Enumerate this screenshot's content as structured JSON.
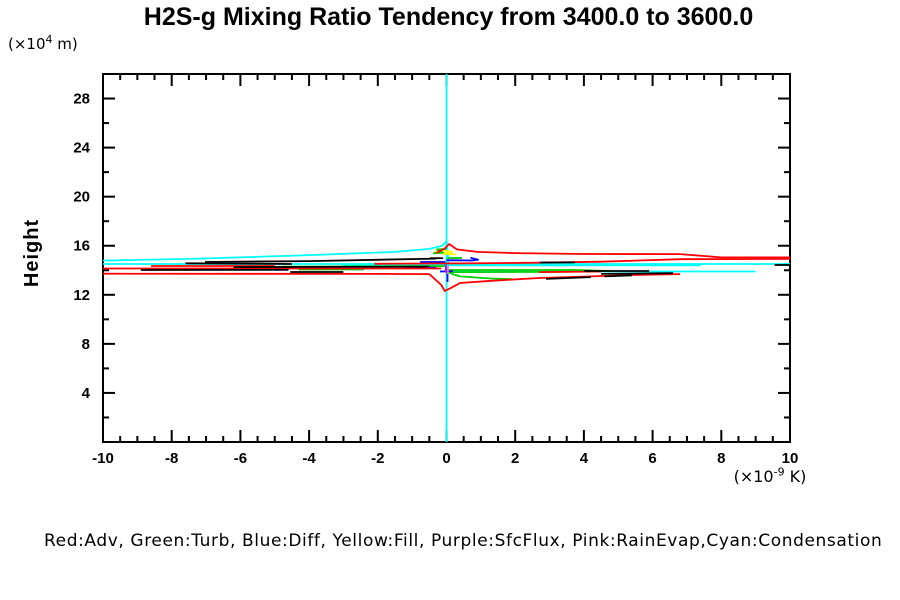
{
  "legend": {
    "text": "Red:Adv, Green:Turb, Blue:Diff, Yellow:Fill, Purple:SfcFlux, Pink:RainEvap,Cyan:Condensation"
  },
  "chart_data": {
    "type": "line",
    "title": "H2S-g Mixing Ratio Tendency from 3400.0 to 3600.0",
    "xlabel": "(x10^-9 K)",
    "ylabel": "Height (x10^4 m)",
    "xlim": [
      -10,
      10
    ],
    "ylim": [
      0,
      30
    ],
    "grid": "off",
    "legend_position": "bottom",
    "x_axis": {
      "min": -10,
      "max": 10,
      "minor_step": 0.5,
      "unit_parts": {
        "prefix": "(×10",
        "sup": "-9",
        "suffix": " K)"
      },
      "major_ticks": [
        {
          "v": -10,
          "label": "-10"
        },
        {
          "v": -8,
          "label": "-8"
        },
        {
          "v": -6,
          "label": "-6"
        },
        {
          "v": -4,
          "label": "-4"
        },
        {
          "v": -2,
          "label": "-2"
        },
        {
          "v": 0,
          "label": "0"
        },
        {
          "v": 2,
          "label": "2"
        },
        {
          "v": 4,
          "label": "4"
        },
        {
          "v": 6,
          "label": "6"
        },
        {
          "v": 8,
          "label": "8"
        },
        {
          "v": 10,
          "label": "10"
        }
      ]
    },
    "y_axis": {
      "min": 0,
      "max": 30,
      "minor_step": 2,
      "label": "Height",
      "unit_parts": {
        "prefix": "(×10",
        "sup": "4",
        "suffix": " m)"
      },
      "major_ticks": [
        {
          "h": 4,
          "label": "4"
        },
        {
          "h": 8,
          "label": "8"
        },
        {
          "h": 12,
          "label": "12"
        },
        {
          "h": 16,
          "label": "16"
        },
        {
          "h": 20,
          "label": "20"
        },
        {
          "h": 24,
          "label": "24"
        },
        {
          "h": 28,
          "label": "28"
        }
      ]
    },
    "series": [
      {
        "name": "Condensation",
        "color": "#00ffff",
        "lines": [
          [
            [
              0,
              30
            ],
            [
              0,
              0
            ]
          ],
          [
            [
              -10,
              14.79
            ],
            [
              -7.2,
              14.95
            ],
            [
              -4.3,
              15.2
            ],
            [
              -1.5,
              15.5
            ],
            [
              -0.5,
              15.74
            ],
            [
              -0.12,
              16.0
            ],
            [
              0,
              16.38
            ],
            [
              0.06,
              14.62
            ]
          ],
          [
            [
              -10,
              14.51
            ],
            [
              10,
              14.51
            ]
          ],
          [
            [
              -3,
              14.4
            ],
            [
              7.4,
              14.4
            ]
          ],
          [
            [
              0,
              13.9
            ],
            [
              9,
              13.9
            ]
          ]
        ]
      },
      {
        "name": "Fill",
        "color": "#ffff00",
        "lines": [
          [
            [
              -0.35,
              15.48
            ],
            [
              -0.05,
              15.62
            ],
            [
              0.16,
              15.5
            ],
            [
              -0.15,
              15.36
            ],
            [
              0.27,
              15.3
            ]
          ]
        ]
      },
      {
        "name": "Turb",
        "color": "#00d000",
        "lines": [
          [
            [
              -4.8,
              14.3
            ],
            [
              -0.9,
              14.33
            ],
            [
              -0.05,
              14.33
            ]
          ],
          [
            [
              -4.3,
              14.06
            ],
            [
              -2.4,
              14.06
            ]
          ],
          [
            [
              -0.4,
              15.38
            ],
            [
              -0.1,
              15.43
            ],
            [
              -0.28,
              15.7
            ],
            [
              0,
              15.73
            ]
          ],
          [
            [
              0.03,
              15.0
            ],
            [
              0.45,
              15.0
            ]
          ],
          [
            [
              0,
              14.02
            ],
            [
              3.8,
              14.02
            ],
            [
              4.8,
              13.94
            ]
          ],
          [
            [
              0,
              13.85
            ],
            [
              3.3,
              13.87
            ]
          ],
          [
            [
              0.02,
              13.9
            ],
            [
              0.2,
              13.66
            ],
            [
              0.4,
              13.5
            ],
            [
              0.8,
              13.42
            ],
            [
              1.3,
              13.33
            ],
            [
              1.9,
              13.28
            ]
          ]
        ]
      },
      {
        "name": "Diff",
        "color": "#0000ff",
        "lines": [
          [
            [
              -1.2,
              14.2
            ],
            [
              -0.3,
              14.2
            ]
          ],
          [
            [
              -0.77,
              14.67
            ],
            [
              -0.03,
              14.67
            ]
          ],
          [
            [
              0,
              14.82
            ],
            [
              0.75,
              14.8
            ],
            [
              0.92,
              14.86
            ],
            [
              0.7,
              15.02
            ]
          ],
          [
            [
              0.03,
              14.18
            ],
            [
              0.03,
              13.04
            ]
          ],
          [
            [
              -0.19,
              13.9
            ],
            [
              0.19,
              13.92
            ]
          ]
        ]
      },
      {
        "name": "Adv",
        "color": "#ff0000",
        "lines": [
          [
            [
              -0.3,
              15.4
            ],
            [
              -0.05,
              15.78
            ],
            [
              0.08,
              16.14
            ],
            [
              0.3,
              15.7
            ],
            [
              0.9,
              15.5
            ],
            [
              2,
              15.4
            ],
            [
              4,
              15.33
            ],
            [
              6.8,
              15.32
            ],
            [
              8,
              15.05
            ],
            [
              10,
              15.05
            ]
          ],
          [
            [
              -2.1,
              14.53
            ],
            [
              0.5,
              14.56
            ],
            [
              2.7,
              14.62
            ],
            [
              4.5,
              14.7
            ],
            [
              6.8,
              14.9
            ],
            [
              10,
              14.93
            ]
          ],
          [
            [
              -10,
              14.14
            ],
            [
              -0.15,
              14.14
            ]
          ],
          [
            [
              -10,
              13.72
            ],
            [
              -2,
              13.7
            ],
            [
              -0.5,
              13.69
            ],
            [
              -0.15,
              12.8
            ],
            [
              -0.05,
              12.31
            ],
            [
              0.12,
              12.55
            ],
            [
              0.4,
              12.96
            ],
            [
              1.3,
              13.14
            ],
            [
              2.7,
              13.37
            ],
            [
              4.2,
              13.5
            ],
            [
              5.6,
              13.63
            ],
            [
              6.8,
              13.69
            ]
          ],
          [
            [
              2.7,
              13.85
            ],
            [
              4.5,
              13.9
            ]
          ],
          [
            [
              -8.6,
              14.35
            ],
            [
              -5,
              14.35
            ]
          ]
        ]
      },
      {
        "name": "black",
        "color": "#000000",
        "lines": [
          [
            [
              -7.03,
              14.67
            ],
            [
              -4,
              14.75
            ],
            [
              -0.3,
              14.95
            ]
          ],
          [
            [
              -7.6,
              14.57
            ],
            [
              -4.5,
              14.51
            ]
          ],
          [
            [
              -6.2,
              14.26
            ],
            [
              -0.5,
              14.3
            ]
          ],
          [
            [
              -8.9,
              14.02
            ],
            [
              -4.6,
              14.04
            ]
          ],
          [
            [
              -4.55,
              13.86
            ],
            [
              -3,
              13.86
            ]
          ],
          [
            [
              -0.48,
              14.98
            ],
            [
              -0.1,
              14.98
            ]
          ],
          [
            [
              2.72,
              14.63
            ],
            [
              3.74,
              14.64
            ]
          ],
          [
            [
              9.55,
              14.43
            ],
            [
              10,
              14.43
            ]
          ],
          [
            [
              4,
              13.94
            ],
            [
              5.9,
              13.94
            ]
          ],
          [
            [
              2.9,
              13.3
            ],
            [
              4.2,
              13.44
            ]
          ],
          [
            [
              4.6,
              13.5
            ],
            [
              5.4,
              13.58
            ]
          ],
          [
            [
              4.5,
              13.7
            ],
            [
              6.6,
              13.76
            ]
          ]
        ]
      },
      {
        "name": "SfcFlux",
        "color": "#a020f0",
        "lines": [
          [
            [
              -0.02,
              14.5
            ],
            [
              -0.02,
              13.8
            ]
          ]
        ]
      },
      {
        "name": "RainEvap",
        "color": "#ff66cc",
        "lines": [
          [
            [
              0.04,
              14.34
            ],
            [
              0.04,
              13.69
            ]
          ]
        ]
      }
    ]
  }
}
